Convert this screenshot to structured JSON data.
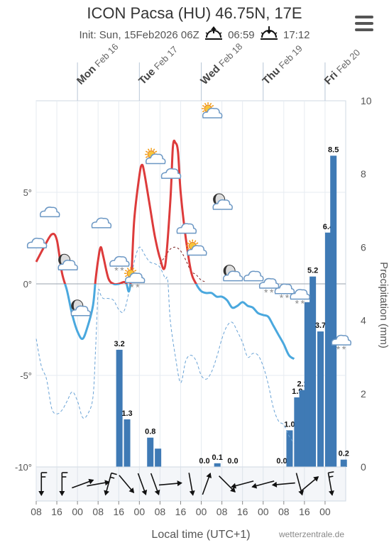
{
  "header": {
    "title": "ICON Pacsa (HU) 46.75N, 17E",
    "init": "Init: Sun, 15Feb2026 06Z",
    "sunrise": "06:59",
    "sunset": "17:12"
  },
  "credit": "wetterzentrale.de",
  "chart_data": {
    "type": "line+bar",
    "title": "ICON Pacsa (HU) 46.75N, 17E",
    "xlabel": "Local time (UTC+1)",
    "ylabel_left": "",
    "ylabel_right": "Precipitation (mm)",
    "x_range_hours": [
      0,
      120
    ],
    "x_ticks": [
      {
        "h": 0,
        "label": "08"
      },
      {
        "h": 8,
        "label": "16"
      },
      {
        "h": 16,
        "label": "00"
      },
      {
        "h": 24,
        "label": "08"
      },
      {
        "h": 32,
        "label": "16"
      },
      {
        "h": 40,
        "label": "00"
      },
      {
        "h": 48,
        "label": "08"
      },
      {
        "h": 56,
        "label": "16"
      },
      {
        "h": 64,
        "label": "00"
      },
      {
        "h": 72,
        "label": "08"
      },
      {
        "h": 80,
        "label": "16"
      },
      {
        "h": 88,
        "label": "00"
      },
      {
        "h": 96,
        "label": "08"
      },
      {
        "h": 104,
        "label": "16"
      },
      {
        "h": 112,
        "label": "00"
      }
    ],
    "days": [
      {
        "h": 16,
        "dow": "Mon",
        "date": "Feb 16"
      },
      {
        "h": 40,
        "dow": "Tue",
        "date": "Feb 17"
      },
      {
        "h": 64,
        "dow": "Wed",
        "date": "Feb 18"
      },
      {
        "h": 88,
        "dow": "Thu",
        "date": "Feb 19"
      },
      {
        "h": 112,
        "dow": "Fri",
        "date": "Feb 20"
      }
    ],
    "y_left": {
      "range": [
        -10,
        10
      ],
      "ticks": [
        {
          "v": 5,
          "label": "5°"
        },
        {
          "v": 0,
          "label": "0°"
        },
        {
          "v": -5,
          "label": "-5°"
        },
        {
          "v": -10,
          "label": "-10°"
        }
      ]
    },
    "y_right": {
      "range": [
        0,
        10
      ],
      "ticks": [
        0,
        2,
        4,
        6,
        8,
        10
      ]
    },
    "temperature": [
      [
        0,
        1.2
      ],
      [
        3,
        2.0
      ],
      [
        6,
        2.7
      ],
      [
        8,
        2.4
      ],
      [
        10,
        0.6
      ],
      [
        12,
        -0.4
      ],
      [
        14,
        -1.7
      ],
      [
        16,
        -2.6
      ],
      [
        18,
        -3.0
      ],
      [
        20,
        -2.3
      ],
      [
        22,
        -1.2
      ],
      [
        23,
        0.2
      ],
      [
        24,
        1.3
      ],
      [
        25,
        2.0
      ],
      [
        26,
        1.5
      ],
      [
        28,
        0.3
      ],
      [
        30,
        0.0
      ],
      [
        32,
        0.0
      ],
      [
        34,
        0.1
      ],
      [
        35,
        0.0
      ],
      [
        36,
        -0.4
      ],
      [
        37,
        0.7
      ],
      [
        38,
        3.5
      ],
      [
        40,
        5.9
      ],
      [
        41,
        6.5
      ],
      [
        42,
        6.0
      ],
      [
        44,
        4.3
      ],
      [
        46,
        2.6
      ],
      [
        48,
        1.4
      ],
      [
        50,
        1.0
      ],
      [
        52,
        4.5
      ],
      [
        53,
        7.5
      ],
      [
        54,
        7.7
      ],
      [
        55,
        7.2
      ],
      [
        56,
        5.0
      ],
      [
        58,
        2.5
      ],
      [
        60,
        0.7
      ],
      [
        62,
        0.0
      ],
      [
        64,
        -0.4
      ],
      [
        66,
        -0.5
      ],
      [
        68,
        -0.5
      ],
      [
        70,
        -0.7
      ],
      [
        72,
        -0.7
      ],
      [
        74,
        -0.9
      ],
      [
        76,
        -1.3
      ],
      [
        78,
        -1.2
      ],
      [
        80,
        -1.0
      ],
      [
        82,
        -1.2
      ],
      [
        84,
        -1.3
      ],
      [
        86,
        -1.6
      ],
      [
        88,
        -1.7
      ],
      [
        90,
        -1.8
      ],
      [
        92,
        -2.3
      ],
      [
        94,
        -2.8
      ],
      [
        96,
        -3.3
      ],
      [
        98,
        -3.9
      ],
      [
        100,
        -4.1
      ]
    ],
    "dewpoint": [
      [
        0,
        -3.0
      ],
      [
        2,
        -4.5
      ],
      [
        4,
        -5.2
      ],
      [
        6,
        -6.8
      ],
      [
        8,
        -7.1
      ],
      [
        10,
        -6.9
      ],
      [
        12,
        -6.4
      ],
      [
        14,
        -5.9
      ],
      [
        16,
        -6.4
      ],
      [
        18,
        -7.3
      ],
      [
        20,
        -7.1
      ],
      [
        22,
        -6.2
      ],
      [
        23,
        -3.6
      ],
      [
        24,
        -0.5
      ],
      [
        25,
        -0.6
      ],
      [
        26,
        -0.8
      ],
      [
        28,
        -0.8
      ],
      [
        30,
        -0.9
      ],
      [
        32,
        -1.4
      ],
      [
        34,
        -1.5
      ],
      [
        36,
        -0.4
      ],
      [
        38,
        1.2
      ],
      [
        40,
        2.0
      ],
      [
        42,
        1.6
      ],
      [
        44,
        1.2
      ],
      [
        46,
        1.1
      ],
      [
        48,
        0.9
      ],
      [
        50,
        0.3
      ],
      [
        51,
        0.2
      ],
      [
        52,
        -2.0
      ],
      [
        54,
        -4.0
      ],
      [
        56,
        -5.4
      ],
      [
        58,
        -4.2
      ],
      [
        60,
        -3.9
      ],
      [
        62,
        -4.2
      ],
      [
        64,
        -5.0
      ],
      [
        66,
        -5.2
      ],
      [
        68,
        -4.8
      ],
      [
        70,
        -4.0
      ],
      [
        72,
        -3.0
      ],
      [
        74,
        -2.3
      ],
      [
        76,
        -2.1
      ],
      [
        78,
        -2.6
      ],
      [
        80,
        -3.2
      ],
      [
        82,
        -4.0
      ],
      [
        84,
        -3.8
      ],
      [
        86,
        -3.9
      ],
      [
        88,
        -4.5
      ],
      [
        90,
        -5.5
      ],
      [
        92,
        -6.8
      ],
      [
        94,
        -7.5
      ],
      [
        96,
        -7.7
      ],
      [
        98,
        -8.3
      ],
      [
        100,
        -8.7
      ]
    ],
    "freezing_level_line": "dashed",
    "precipitation": [
      {
        "h": 31,
        "mm": 3.2,
        "label": "3.2"
      },
      {
        "h": 34,
        "mm": 1.3,
        "label": "1.3"
      },
      {
        "h": 43,
        "mm": 0.8,
        "label": "0.8"
      },
      {
        "h": 46,
        "mm": 0.5,
        "label": ""
      },
      {
        "h": 64,
        "mm": 0.0,
        "label": "0.0"
      },
      {
        "h": 69,
        "mm": 0.1,
        "label": "0.1"
      },
      {
        "h": 75,
        "mm": 0.0,
        "label": "0.0"
      },
      {
        "h": 94,
        "mm": 0.0,
        "label": "0.0"
      },
      {
        "h": 97,
        "mm": 1.0,
        "label": "1.0"
      },
      {
        "h": 100,
        "mm": 1.9,
        "label": "1.9"
      },
      {
        "h": 102,
        "mm": 2.1,
        "label": "2.1"
      },
      {
        "h": 104,
        "mm": 4.5,
        "label": ""
      },
      {
        "h": 106,
        "mm": 5.2,
        "label": "5.2"
      },
      {
        "h": 109,
        "mm": 3.7,
        "label": "3.7"
      },
      {
        "h": 112,
        "mm": 6.4,
        "label": "6.4"
      },
      {
        "h": 114,
        "mm": 8.5,
        "label": "8.5"
      },
      {
        "h": 118,
        "mm": 0.2,
        "label": "0.2"
      }
    ],
    "weather_icons": [
      {
        "h": 0,
        "t": 2.2,
        "icon": "cloud"
      },
      {
        "h": 5,
        "t": 3.9,
        "icon": "cloud"
      },
      {
        "h": 12,
        "t": 1.0,
        "icon": "moon-cloud"
      },
      {
        "h": 17,
        "t": -1.5,
        "icon": "moon-cloud"
      },
      {
        "h": 25,
        "t": 3.3,
        "icon": "cloud"
      },
      {
        "h": 32,
        "t": 1.2,
        "icon": "cloud-snow"
      },
      {
        "h": 38,
        "t": 0.3,
        "icon": "sun-cloud-snow"
      },
      {
        "h": 46,
        "t": 6.8,
        "icon": "sun-cloud"
      },
      {
        "h": 52,
        "t": 6.0,
        "icon": "cloud"
      },
      {
        "h": 58,
        "t": 3.0,
        "icon": "cloud"
      },
      {
        "h": 62,
        "t": 1.8,
        "icon": "sun-cloud"
      },
      {
        "h": 68,
        "t": 9.3,
        "icon": "sun-cloud"
      },
      {
        "h": 72,
        "t": 4.3,
        "icon": "moon-cloud"
      },
      {
        "h": 76,
        "t": 0.4,
        "icon": "moon-cloud"
      },
      {
        "h": 84,
        "t": 0.4,
        "icon": "cloud"
      },
      {
        "h": 90,
        "t": 0.0,
        "icon": "cloud-snow"
      },
      {
        "h": 96,
        "t": -0.3,
        "icon": "cloud-snow"
      },
      {
        "h": 102,
        "t": -0.6,
        "icon": "cloud-snow"
      },
      {
        "h": 118,
        "t": -3.1,
        "icon": "cloud-snow"
      }
    ],
    "wind": [
      {
        "h": 2,
        "dir": 0,
        "type": "barb"
      },
      {
        "h": 10,
        "dir": 0,
        "type": "barb"
      },
      {
        "h": 18,
        "dir": 250,
        "type": "arrow"
      },
      {
        "h": 24,
        "dir": 260,
        "type": "arrow"
      },
      {
        "h": 28,
        "dir": 15,
        "type": "barb"
      },
      {
        "h": 35,
        "dir": 320,
        "type": "arrow"
      },
      {
        "h": 41,
        "dir": 340,
        "type": "arrow"
      },
      {
        "h": 46,
        "dir": 340,
        "type": "arrow"
      },
      {
        "h": 52,
        "dir": 265,
        "type": "arrow"
      },
      {
        "h": 60,
        "dir": 350,
        "type": "arrow"
      },
      {
        "h": 66,
        "dir": 200,
        "type": "arrow"
      },
      {
        "h": 74,
        "dir": 315,
        "type": "arrow"
      },
      {
        "h": 80,
        "dir": 75,
        "type": "arrow"
      },
      {
        "h": 88,
        "dir": 75,
        "type": "arrow"
      },
      {
        "h": 96,
        "dir": 85,
        "type": "arrow"
      },
      {
        "h": 102,
        "dir": 345,
        "type": "arrow"
      },
      {
        "h": 106,
        "dir": 230,
        "type": "arrow"
      },
      {
        "h": 114,
        "dir": 350,
        "type": "barb"
      }
    ]
  }
}
